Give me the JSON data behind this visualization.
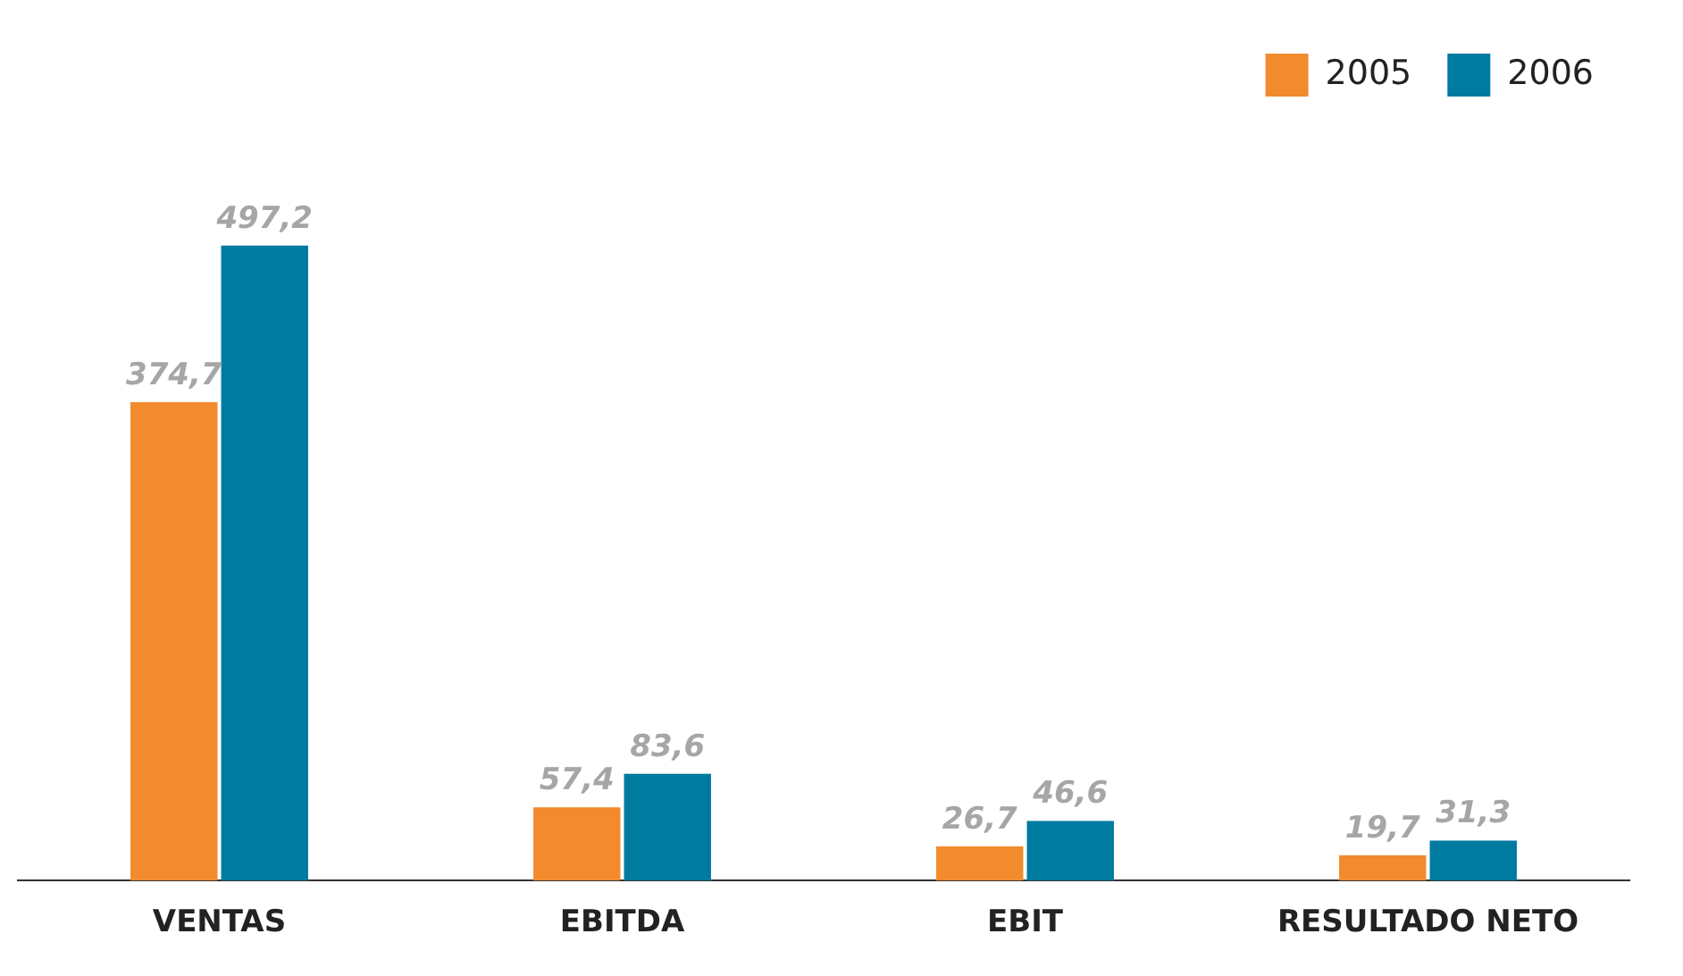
{
  "chart_data": {
    "type": "bar",
    "categories": [
      "VENTAS",
      "EBITDA",
      "EBIT",
      "RESULTADO NETO"
    ],
    "series": [
      {
        "name": "2005",
        "color": "#f28a2e",
        "values": [
          374.7,
          57.4,
          26.7,
          19.7
        ],
        "value_labels": [
          "374,7",
          "57,4",
          "26,7",
          "19,7"
        ]
      },
      {
        "name": "2006",
        "color": "#007ba0",
        "values": [
          497.2,
          83.6,
          46.6,
          31.3
        ],
        "value_labels": [
          "497,2",
          "83,6",
          "46,6",
          "31,3"
        ]
      }
    ],
    "grid": false,
    "legend": "top right"
  }
}
